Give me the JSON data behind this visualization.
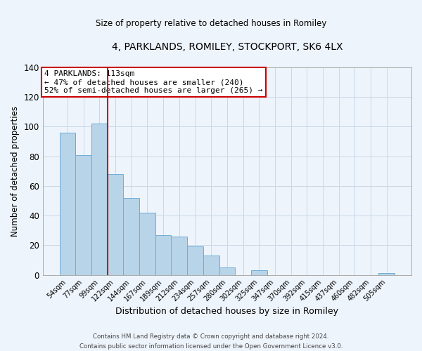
{
  "title": "4, PARKLANDS, ROMILEY, STOCKPORT, SK6 4LX",
  "subtitle": "Size of property relative to detached houses in Romiley",
  "xlabel": "Distribution of detached houses by size in Romiley",
  "ylabel": "Number of detached properties",
  "bar_labels": [
    "54sqm",
    "77sqm",
    "99sqm",
    "122sqm",
    "144sqm",
    "167sqm",
    "189sqm",
    "212sqm",
    "234sqm",
    "257sqm",
    "280sqm",
    "302sqm",
    "325sqm",
    "347sqm",
    "370sqm",
    "392sqm",
    "415sqm",
    "437sqm",
    "460sqm",
    "482sqm",
    "505sqm"
  ],
  "bar_values": [
    96,
    81,
    102,
    68,
    52,
    42,
    27,
    26,
    19,
    13,
    5,
    0,
    3,
    0,
    0,
    0,
    0,
    0,
    0,
    0,
    1
  ],
  "bar_color": "#b8d4e8",
  "bar_edge_color": "#6aaed6",
  "vline_color": "#cc0000",
  "annotation_text": "4 PARKLANDS: 113sqm\n← 47% of detached houses are smaller (240)\n52% of semi-detached houses are larger (265) →",
  "annotation_box_color": "#ffffff",
  "annotation_box_edge_color": "#cc0000",
  "ylim": [
    0,
    140
  ],
  "yticks": [
    0,
    20,
    40,
    60,
    80,
    100,
    120,
    140
  ],
  "footer_line1": "Contains HM Land Registry data © Crown copyright and database right 2024.",
  "footer_line2": "Contains public sector information licensed under the Open Government Licence v3.0.",
  "bg_color": "#eef4fb",
  "grid_color": "#c8d8e8"
}
